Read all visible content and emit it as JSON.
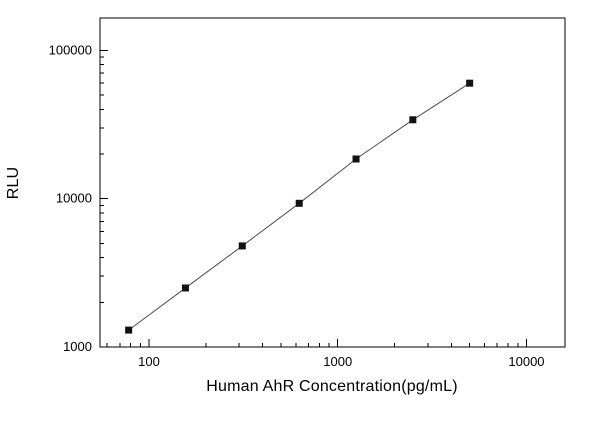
{
  "figure": {
    "background": "#ffffff",
    "axis_color": "#000000"
  },
  "chart_data": {
    "type": "scatter",
    "title": "",
    "xlabel": "Human AhR Concentration(pg/mL)",
    "ylabel": "RLU",
    "x_scale": "log",
    "y_scale": "log",
    "xlim": [
      55,
      16000
    ],
    "ylim": [
      1000,
      165000
    ],
    "x_major_ticks": [
      100,
      1000,
      10000
    ],
    "y_major_ticks": [
      1000,
      10000,
      100000
    ],
    "x": [
      78,
      156,
      312,
      625,
      1250,
      2500,
      5000
    ],
    "y": [
      1300,
      2500,
      4800,
      9300,
      18500,
      34000,
      60000
    ],
    "marker": "filled-square",
    "marker_color": "#111111",
    "line_color": "#4d4d4d",
    "grid": false,
    "legend": "none"
  }
}
